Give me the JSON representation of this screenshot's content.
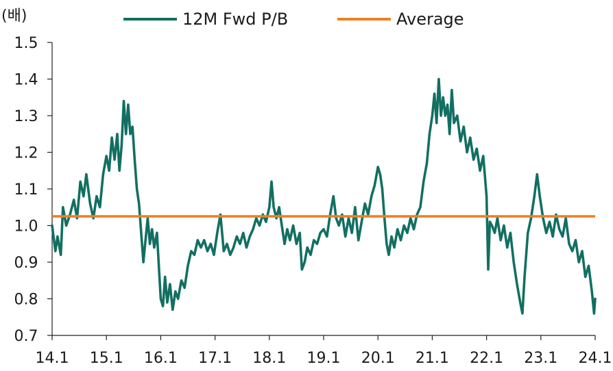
{
  "chart_data": {
    "type": "line",
    "unit_label": "(배)",
    "y_ticks": [
      "0.7",
      "0.8",
      "0.9",
      "1.0",
      "1.1",
      "1.2",
      "1.3",
      "1.4",
      "1.5"
    ],
    "x_ticks": [
      "14.1",
      "15.1",
      "16.1",
      "17.1",
      "18.1",
      "19.1",
      "20.1",
      "21.1",
      "22.1",
      "23.1",
      "24.1"
    ],
    "ylim": [
      0.7,
      1.5
    ],
    "xlim": [
      2014.0,
      2024.0
    ],
    "legend_position": "top",
    "series": [
      {
        "name": "12M Fwd P/B",
        "color": "#126f62",
        "points": [
          [
            2014.0,
            1.0
          ],
          [
            2014.06,
            0.93
          ],
          [
            2014.1,
            0.97
          ],
          [
            2014.16,
            0.92
          ],
          [
            2014.2,
            1.05
          ],
          [
            2014.26,
            1.0
          ],
          [
            2014.33,
            1.03
          ],
          [
            2014.4,
            1.07
          ],
          [
            2014.46,
            1.02
          ],
          [
            2014.52,
            1.12
          ],
          [
            2014.58,
            1.08
          ],
          [
            2014.63,
            1.14
          ],
          [
            2014.7,
            1.06
          ],
          [
            2014.76,
            1.02
          ],
          [
            2014.82,
            1.08
          ],
          [
            2014.88,
            1.05
          ],
          [
            2014.94,
            1.14
          ],
          [
            2015.0,
            1.19
          ],
          [
            2015.05,
            1.15
          ],
          [
            2015.1,
            1.24
          ],
          [
            2015.15,
            1.18
          ],
          [
            2015.2,
            1.25
          ],
          [
            2015.24,
            1.15
          ],
          [
            2015.28,
            1.22
          ],
          [
            2015.32,
            1.34
          ],
          [
            2015.36,
            1.25
          ],
          [
            2015.4,
            1.33
          ],
          [
            2015.44,
            1.25
          ],
          [
            2015.48,
            1.27
          ],
          [
            2015.52,
            1.18
          ],
          [
            2015.56,
            1.1
          ],
          [
            2015.6,
            1.06
          ],
          [
            2015.64,
            0.98
          ],
          [
            2015.68,
            0.9
          ],
          [
            2015.72,
            0.96
          ],
          [
            2015.76,
            1.02
          ],
          [
            2015.8,
            0.95
          ],
          [
            2015.84,
            0.99
          ],
          [
            2015.88,
            0.94
          ],
          [
            2015.93,
            0.98
          ],
          [
            2016.0,
            0.8
          ],
          [
            2016.04,
            0.78
          ],
          [
            2016.08,
            0.86
          ],
          [
            2016.12,
            0.79
          ],
          [
            2016.17,
            0.84
          ],
          [
            2016.22,
            0.77
          ],
          [
            2016.27,
            0.82
          ],
          [
            2016.32,
            0.8
          ],
          [
            2016.38,
            0.85
          ],
          [
            2016.44,
            0.83
          ],
          [
            2016.5,
            0.89
          ],
          [
            2016.56,
            0.93
          ],
          [
            2016.62,
            0.92
          ],
          [
            2016.68,
            0.96
          ],
          [
            2016.74,
            0.94
          ],
          [
            2016.8,
            0.96
          ],
          [
            2016.86,
            0.93
          ],
          [
            2016.92,
            0.95
          ],
          [
            2016.98,
            0.92
          ],
          [
            2017.04,
            0.98
          ],
          [
            2017.1,
            1.03
          ],
          [
            2017.16,
            0.93
          ],
          [
            2017.22,
            0.95
          ],
          [
            2017.28,
            0.92
          ],
          [
            2017.34,
            0.94
          ],
          [
            2017.4,
            0.97
          ],
          [
            2017.46,
            0.95
          ],
          [
            2017.52,
            0.98
          ],
          [
            2017.58,
            0.94
          ],
          [
            2017.64,
            0.97
          ],
          [
            2017.7,
            0.99
          ],
          [
            2017.76,
            1.02
          ],
          [
            2017.82,
            1.0
          ],
          [
            2017.88,
            1.03
          ],
          [
            2017.94,
            1.01
          ],
          [
            2018.0,
            1.05
          ],
          [
            2018.04,
            1.12
          ],
          [
            2018.08,
            1.05
          ],
          [
            2018.13,
            1.02
          ],
          [
            2018.18,
            1.05
          ],
          [
            2018.23,
            1.0
          ],
          [
            2018.28,
            0.95
          ],
          [
            2018.33,
            0.99
          ],
          [
            2018.38,
            0.96
          ],
          [
            2018.44,
            1.0
          ],
          [
            2018.5,
            0.95
          ],
          [
            2018.56,
            0.98
          ],
          [
            2018.6,
            0.88
          ],
          [
            2018.65,
            0.9
          ],
          [
            2018.7,
            0.94
          ],
          [
            2018.76,
            0.92
          ],
          [
            2018.82,
            0.96
          ],
          [
            2018.88,
            0.95
          ],
          [
            2018.94,
            0.98
          ],
          [
            2019.0,
            0.99
          ],
          [
            2019.06,
            0.97
          ],
          [
            2019.12,
            1.03
          ],
          [
            2019.18,
            1.08
          ],
          [
            2019.23,
            1.02
          ],
          [
            2019.28,
            1.0
          ],
          [
            2019.34,
            1.03
          ],
          [
            2019.4,
            0.97
          ],
          [
            2019.46,
            1.02
          ],
          [
            2019.52,
            0.98
          ],
          [
            2019.58,
            1.05
          ],
          [
            2019.64,
            0.96
          ],
          [
            2019.7,
            1.01
          ],
          [
            2019.76,
            1.06
          ],
          [
            2019.82,
            1.03
          ],
          [
            2019.88,
            1.08
          ],
          [
            2019.94,
            1.11
          ],
          [
            2020.0,
            1.16
          ],
          [
            2020.04,
            1.14
          ],
          [
            2020.08,
            1.1
          ],
          [
            2020.12,
            1.02
          ],
          [
            2020.16,
            0.95
          ],
          [
            2020.2,
            0.92
          ],
          [
            2020.25,
            0.97
          ],
          [
            2020.3,
            0.94
          ],
          [
            2020.36,
            0.99
          ],
          [
            2020.42,
            0.96
          ],
          [
            2020.48,
            1.0
          ],
          [
            2020.54,
            0.98
          ],
          [
            2020.6,
            1.02
          ],
          [
            2020.66,
            0.99
          ],
          [
            2020.72,
            1.03
          ],
          [
            2020.78,
            1.05
          ],
          [
            2020.84,
            1.12
          ],
          [
            2020.9,
            1.17
          ],
          [
            2020.95,
            1.25
          ],
          [
            2021.0,
            1.3
          ],
          [
            2021.04,
            1.36
          ],
          [
            2021.08,
            1.28
          ],
          [
            2021.12,
            1.4
          ],
          [
            2021.16,
            1.3
          ],
          [
            2021.2,
            1.35
          ],
          [
            2021.24,
            1.3
          ],
          [
            2021.28,
            1.33
          ],
          [
            2021.32,
            1.25
          ],
          [
            2021.36,
            1.37
          ],
          [
            2021.4,
            1.28
          ],
          [
            2021.46,
            1.3
          ],
          [
            2021.52,
            1.23
          ],
          [
            2021.58,
            1.27
          ],
          [
            2021.64,
            1.2
          ],
          [
            2021.7,
            1.24
          ],
          [
            2021.76,
            1.18
          ],
          [
            2021.82,
            1.21
          ],
          [
            2021.88,
            1.15
          ],
          [
            2021.94,
            1.19
          ],
          [
            2022.0,
            1.08
          ],
          [
            2022.03,
            0.88
          ],
          [
            2022.06,
            1.01
          ],
          [
            2022.1,
            1.0
          ],
          [
            2022.15,
            0.98
          ],
          [
            2022.2,
            1.02
          ],
          [
            2022.26,
            0.96
          ],
          [
            2022.32,
            1.0
          ],
          [
            2022.38,
            0.94
          ],
          [
            2022.44,
            0.98
          ],
          [
            2022.5,
            0.9
          ],
          [
            2022.56,
            0.84
          ],
          [
            2022.62,
            0.79
          ],
          [
            2022.66,
            0.76
          ],
          [
            2022.7,
            0.86
          ],
          [
            2022.76,
            0.98
          ],
          [
            2022.82,
            1.02
          ],
          [
            2022.88,
            1.08
          ],
          [
            2022.93,
            1.14
          ],
          [
            2022.98,
            1.08
          ],
          [
            2023.04,
            1.02
          ],
          [
            2023.1,
            0.98
          ],
          [
            2023.16,
            1.01
          ],
          [
            2023.22,
            0.97
          ],
          [
            2023.28,
            1.03
          ],
          [
            2023.34,
            0.99
          ],
          [
            2023.4,
            0.97
          ],
          [
            2023.46,
            1.02
          ],
          [
            2023.52,
            0.95
          ],
          [
            2023.58,
            0.93
          ],
          [
            2023.64,
            0.96
          ],
          [
            2023.7,
            0.9
          ],
          [
            2023.76,
            0.93
          ],
          [
            2023.82,
            0.86
          ],
          [
            2023.88,
            0.89
          ],
          [
            2023.94,
            0.82
          ],
          [
            2023.98,
            0.76
          ],
          [
            2024.0,
            0.8
          ]
        ]
      },
      {
        "name": "Average",
        "color": "#ed8124",
        "points": [
          [
            2014.0,
            1.025
          ],
          [
            2024.0,
            1.025
          ]
        ]
      }
    ]
  }
}
